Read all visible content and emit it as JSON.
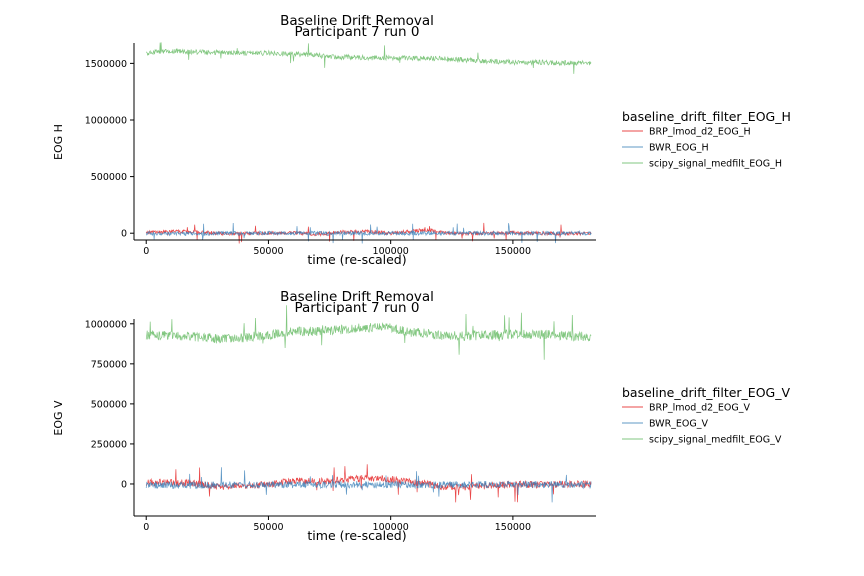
{
  "chart_data": [
    {
      "type": "line",
      "title": "Baseline Drift Removal",
      "subtitle": "Participant 7 run 0",
      "xlabel": "time (re-scaled)",
      "ylabel": "EOG H",
      "xlim": [
        -5000,
        184000
      ],
      "ylim": [
        -60000,
        1680000
      ],
      "x_ticks": [
        0,
        50000,
        100000,
        150000
      ],
      "x_tick_labels": [
        "0",
        "50000",
        "100000",
        "150000"
      ],
      "y_ticks": [
        0,
        500000,
        1000000,
        1500000
      ],
      "y_tick_labels": [
        "0",
        "500000",
        "1000000",
        "1500000"
      ],
      "grid": false,
      "legend": {
        "title": "baseline_drift_filter_EOG_H",
        "placement": "right",
        "entries": [
          "BRP_lmod_d2_EOG_H",
          "BWR_EOG_H",
          "scipy_signal_medfilt_EOG_H"
        ]
      },
      "series": [
        {
          "name": "BRP_lmod_d2_EOG_H",
          "color": "#e41a1c",
          "alpha": 0.8,
          "x": [
            0,
            10000,
            20000,
            30000,
            40000,
            50000,
            60000,
            70000,
            80000,
            90000,
            100000,
            110000,
            115000,
            120000,
            130000,
            140000,
            150000,
            160000,
            170000,
            182000
          ],
          "y": [
            5000,
            15000,
            10000,
            0,
            -5000,
            2000,
            5000,
            -10000,
            10000,
            15000,
            0,
            20000,
            30000,
            10000,
            -5000,
            0,
            5000,
            0,
            -3000,
            0
          ],
          "noise": 16000
        },
        {
          "name": "BWR_EOG_H",
          "color": "#377eb8",
          "alpha": 0.8,
          "x": [
            0,
            20000,
            40000,
            60000,
            80000,
            100000,
            120000,
            140000,
            160000,
            182000
          ],
          "y": [
            0,
            -5000,
            0,
            2000,
            -3000,
            0,
            2000,
            -2000,
            0,
            0
          ],
          "noise": 18000
        },
        {
          "name": "scipy_signal_medfilt_EOG_H",
          "color": "#4daf4a",
          "alpha": 0.7,
          "x": [
            0,
            10000,
            20000,
            30000,
            40000,
            50000,
            60000,
            70000,
            80000,
            90000,
            100000,
            110000,
            120000,
            130000,
            140000,
            150000,
            160000,
            170000,
            182000
          ],
          "y": [
            1590000,
            1610000,
            1600000,
            1595000,
            1590000,
            1590000,
            1585000,
            1570000,
            1555000,
            1550000,
            1550000,
            1545000,
            1545000,
            1530000,
            1520000,
            1510000,
            1510000,
            1505000,
            1500000
          ],
          "noise": 22000
        }
      ]
    },
    {
      "type": "line",
      "title": "Baseline Drift Removal",
      "subtitle": "Participant 7 run 0",
      "xlabel": "time (re-scaled)",
      "ylabel": "EOG V",
      "xlim": [
        -5000,
        184000
      ],
      "ylim": [
        -200000,
        1030000
      ],
      "x_ticks": [
        0,
        50000,
        100000,
        150000
      ],
      "x_tick_labels": [
        "0",
        "50000",
        "100000",
        "150000"
      ],
      "y_ticks": [
        0,
        250000,
        500000,
        750000,
        1000000
      ],
      "y_tick_labels": [
        "0",
        "250000",
        "500000",
        "750000",
        "1000000"
      ],
      "grid": false,
      "legend": {
        "title": "baseline_drift_filter_EOG_V",
        "placement": "right",
        "entries": [
          "BRP_lmod_d2_EOG_V",
          "BWR_EOG_V",
          "scipy_signal_medfilt_EOG_V"
        ]
      },
      "series": [
        {
          "name": "BRP_lmod_d2_EOG_V",
          "color": "#e41a1c",
          "alpha": 0.8,
          "x": [
            0,
            10000,
            20000,
            30000,
            40000,
            50000,
            60000,
            70000,
            80000,
            90000,
            100000,
            110000,
            120000,
            130000,
            140000,
            150000,
            160000,
            170000,
            182000
          ],
          "y": [
            10000,
            8000,
            5000,
            -20000,
            -10000,
            -5000,
            20000,
            15000,
            25000,
            35000,
            30000,
            10000,
            -15000,
            -20000,
            -10000,
            0,
            -5000,
            0,
            0
          ],
          "noise": 22000
        },
        {
          "name": "BWR_EOG_V",
          "color": "#377eb8",
          "alpha": 0.8,
          "x": [
            0,
            20000,
            40000,
            60000,
            80000,
            100000,
            120000,
            140000,
            160000,
            182000
          ],
          "y": [
            -5000,
            -8000,
            -5000,
            -5000,
            -3000,
            -5000,
            -5000,
            -3000,
            -4000,
            -5000
          ],
          "noise": 22000
        },
        {
          "name": "scipy_signal_medfilt_EOG_V",
          "color": "#4daf4a",
          "alpha": 0.7,
          "x": [
            0,
            10000,
            20000,
            30000,
            40000,
            50000,
            60000,
            70000,
            80000,
            90000,
            95000,
            100000,
            105000,
            110000,
            120000,
            130000,
            140000,
            150000,
            160000,
            170000,
            182000
          ],
          "y": [
            930000,
            925000,
            920000,
            905000,
            915000,
            930000,
            950000,
            955000,
            965000,
            975000,
            980000,
            975000,
            955000,
            945000,
            930000,
            925000,
            930000,
            935000,
            935000,
            925000,
            920000
          ],
          "noise": 30000
        }
      ]
    }
  ]
}
